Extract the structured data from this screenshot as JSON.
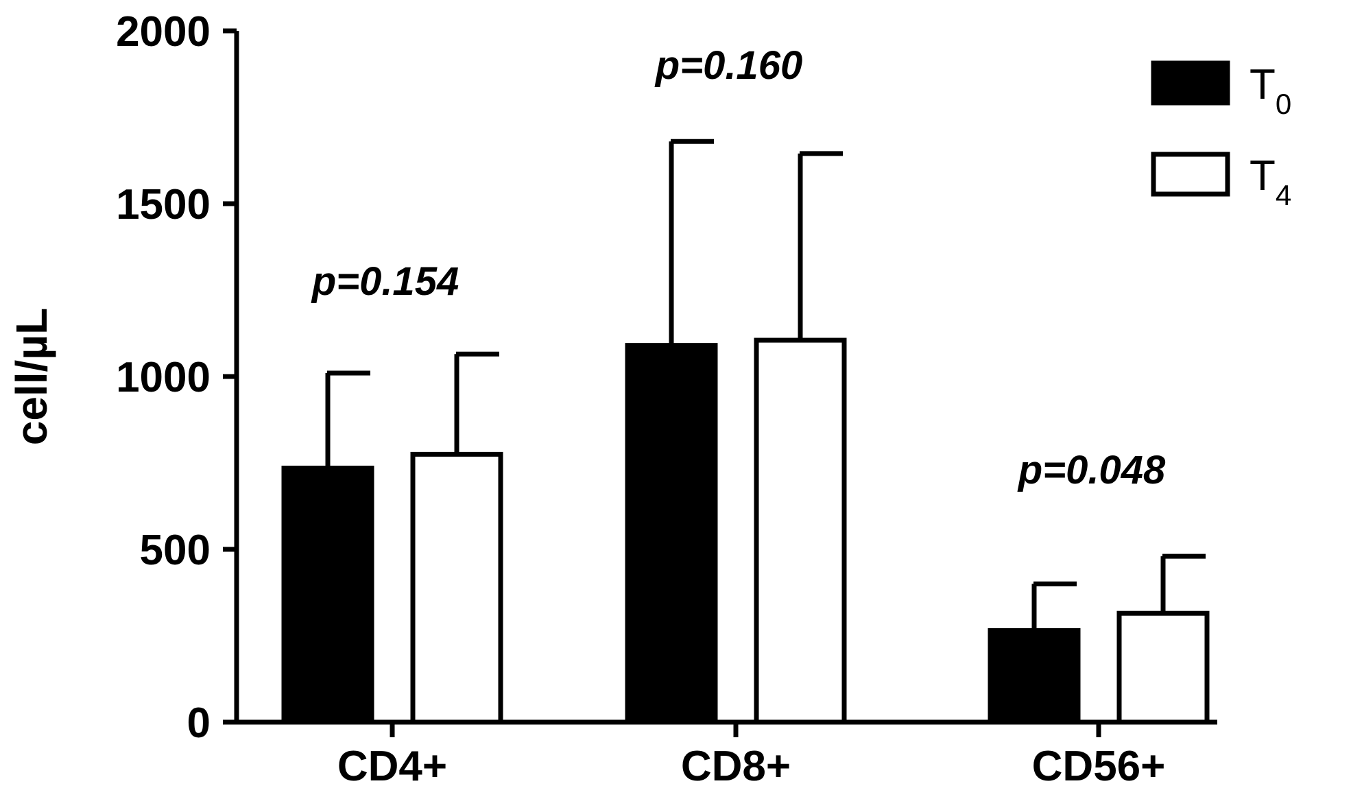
{
  "chart_data": {
    "type": "bar",
    "categories": [
      "CD4+",
      "CD8+",
      "CD56+"
    ],
    "series": [
      {
        "name": "T0",
        "label_main": "T",
        "label_sub": "0",
        "fill": "#000000",
        "values": [
          735,
          1090,
          265
        ],
        "errors": [
          275,
          590,
          135
        ]
      },
      {
        "name": "T4",
        "label_main": "T",
        "label_sub": "4",
        "fill": "#ffffff",
        "values": [
          775,
          1105,
          315
        ],
        "errors": [
          290,
          540,
          165
        ]
      }
    ],
    "annotations": [
      "p=0.154",
      "p=0.160",
      "p=0.048"
    ],
    "ylabel": "cell/µL",
    "xlabel": "",
    "title": "",
    "ylim": [
      0,
      2000
    ],
    "yticks": [
      0,
      500,
      1000,
      1500,
      2000
    ],
    "grid": false,
    "legend_position": "top-right"
  }
}
